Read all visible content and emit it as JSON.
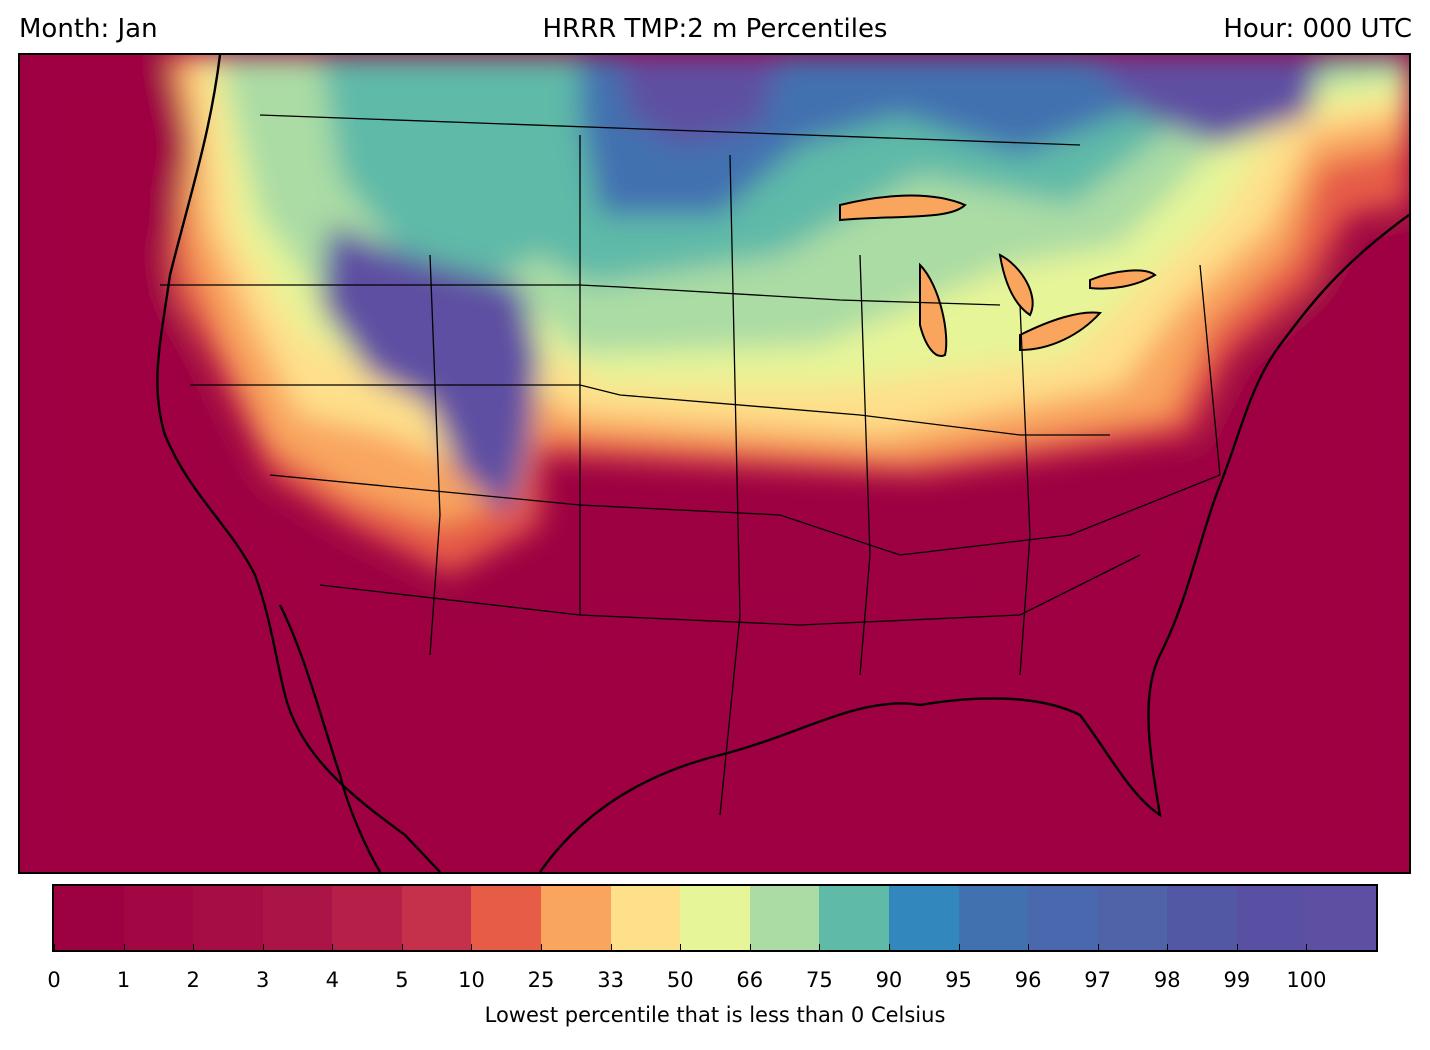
{
  "header": {
    "month": "Month: Jan",
    "title": "HRRR TMP:2 m Percentiles",
    "hour": "Hour: 000 UTC"
  },
  "colorbar": {
    "label": "Lowest percentile that is less than 0 Celsius",
    "ticks": [
      "0",
      "1",
      "2",
      "3",
      "4",
      "5",
      "10",
      "25",
      "33",
      "50",
      "66",
      "75",
      "90",
      "95",
      "96",
      "97",
      "98",
      "99",
      "100"
    ],
    "colors": [
      "#9e0142",
      "#a20743",
      "#a70d45",
      "#ab1446",
      "#b51f48",
      "#c5314b",
      "#e65c47",
      "#f9a55e",
      "#fee08b",
      "#e6f598",
      "#aadca4",
      "#5fbaa8",
      "#3288bd",
      "#4271b0",
      "#4a68ad",
      "#5062a8",
      "#5358a4",
      "#5a50a3",
      "#5e4fa2"
    ]
  },
  "map": {
    "background_color": "#9e0142",
    "boundary_color": "#000000"
  }
}
